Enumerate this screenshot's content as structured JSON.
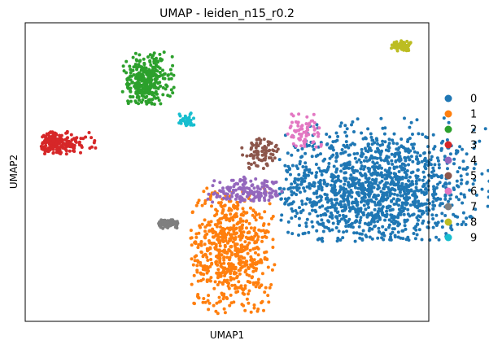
{
  "chart_data": {
    "type": "scatter",
    "title": "UMAP - leiden_n15_r0.2",
    "xlabel": "UMAP1",
    "ylabel": "UMAP2",
    "x_ticks": "none",
    "y_ticks": "none",
    "grid": false,
    "legend_placement": "right",
    "legend": [
      "0",
      "1",
      "2",
      "3",
      "4",
      "5",
      "6",
      "7",
      "8",
      "9"
    ],
    "colors": [
      "#1f77b4",
      "#ff7f0e",
      "#2ca02c",
      "#d62728",
      "#9467bd",
      "#8c564b",
      "#e377c2",
      "#7f7f7f",
      "#bcbd22",
      "#17becf"
    ],
    "series": [
      {
        "name": "0",
        "center": [
          8.6,
          5.1
        ],
        "extent": [
          6.3,
          11.5,
          3.1,
          7.9
        ],
        "n": 1400
      },
      {
        "name": "1",
        "center": [
          5.1,
          2.8
        ],
        "extent": [
          4.1,
          6.2,
          0.3,
          5.2
        ],
        "n": 650
      },
      {
        "name": "2",
        "center": [
          3.0,
          9.3
        ],
        "extent": [
          2.4,
          3.7,
          8.4,
          10.5
        ],
        "n": 330
      },
      {
        "name": "3",
        "center": [
          0.7,
          6.9
        ],
        "extent": [
          0.4,
          2.1,
          6.5,
          7.4
        ],
        "n": 200
      },
      {
        "name": "4",
        "center": [
          5.5,
          5.0
        ],
        "extent": [
          4.5,
          6.4,
          4.6,
          5.6
        ],
        "n": 160
      },
      {
        "name": "5",
        "center": [
          5.8,
          6.6
        ],
        "extent": [
          5.2,
          6.3,
          5.8,
          7.1
        ],
        "n": 80
      },
      {
        "name": "6",
        "center": [
          6.9,
          7.3
        ],
        "extent": [
          6.5,
          7.4,
          6.7,
          8.2
        ],
        "n": 70
      },
      {
        "name": "7",
        "center": [
          3.5,
          3.8
        ],
        "extent": [
          3.3,
          3.9,
          3.6,
          4.0
        ],
        "n": 70
      },
      {
        "name": "8",
        "center": [
          9.3,
          10.7
        ],
        "extent": [
          9.0,
          9.6,
          10.5,
          10.9
        ],
        "n": 60
      },
      {
        "name": "9",
        "center": [
          4.0,
          7.8
        ],
        "extent": [
          3.8,
          4.2,
          7.6,
          8.2
        ],
        "n": 40
      }
    ],
    "xlim": [
      0,
      10
    ],
    "ylim": [
      0,
      11.6
    ]
  }
}
